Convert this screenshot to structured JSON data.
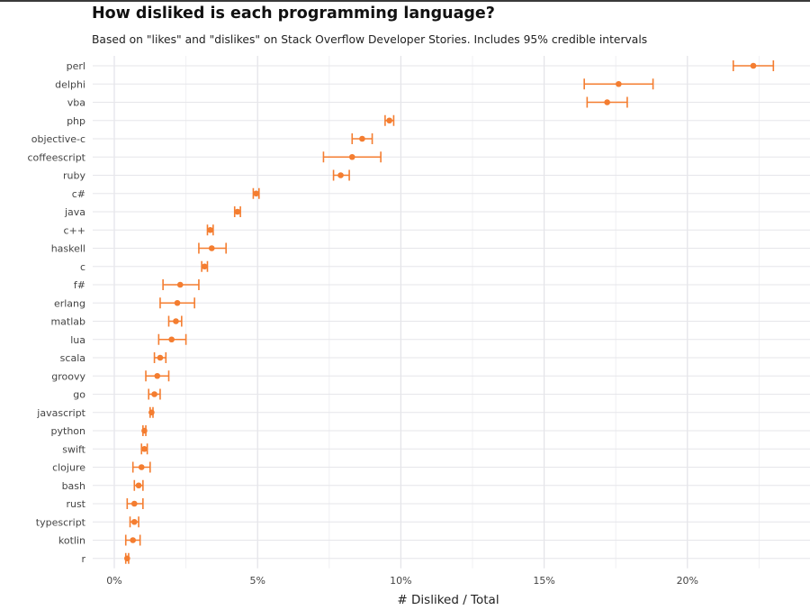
{
  "chart_data": {
    "type": "scatter",
    "title": "How disliked is each programming language?",
    "subtitle": "Based on \"likes\" and \"dislikes\" on Stack Overflow Developer Stories. Includes 95% credible intervals",
    "xlabel": "# Disliked / Total",
    "ylabel": "",
    "xlim": [
      0,
      24
    ],
    "x_ticks": [
      0,
      5,
      10,
      15,
      20
    ],
    "x_tick_labels": [
      "0%",
      "5%",
      "10%",
      "15%",
      "20%"
    ],
    "grid": true,
    "color": "#f47d30",
    "points": [
      {
        "label": "perl",
        "value": 22.3,
        "low": 21.6,
        "high": 23.0
      },
      {
        "label": "delphi",
        "value": 17.6,
        "low": 16.4,
        "high": 18.8
      },
      {
        "label": "vba",
        "value": 17.2,
        "low": 16.5,
        "high": 17.9
      },
      {
        "label": "php",
        "value": 9.6,
        "low": 9.45,
        "high": 9.75
      },
      {
        "label": "objective-c",
        "value": 8.65,
        "low": 8.3,
        "high": 9.0
      },
      {
        "label": "coffeescript",
        "value": 8.3,
        "low": 7.3,
        "high": 9.3
      },
      {
        "label": "ruby",
        "value": 7.9,
        "low": 7.65,
        "high": 8.2
      },
      {
        "label": "c#",
        "value": 4.95,
        "low": 4.85,
        "high": 5.05
      },
      {
        "label": "java",
        "value": 4.3,
        "low": 4.2,
        "high": 4.4
      },
      {
        "label": "c++",
        "value": 3.35,
        "low": 3.25,
        "high": 3.45
      },
      {
        "label": "haskell",
        "value": 3.4,
        "low": 2.95,
        "high": 3.9
      },
      {
        "label": "c",
        "value": 3.15,
        "low": 3.05,
        "high": 3.25
      },
      {
        "label": "f#",
        "value": 2.3,
        "low": 1.7,
        "high": 2.95
      },
      {
        "label": "erlang",
        "value": 2.2,
        "low": 1.6,
        "high": 2.8
      },
      {
        "label": "matlab",
        "value": 2.15,
        "low": 1.9,
        "high": 2.35
      },
      {
        "label": "lua",
        "value": 2.0,
        "low": 1.55,
        "high": 2.5
      },
      {
        "label": "scala",
        "value": 1.6,
        "low": 1.4,
        "high": 1.8
      },
      {
        "label": "groovy",
        "value": 1.5,
        "low": 1.1,
        "high": 1.9
      },
      {
        "label": "go",
        "value": 1.4,
        "low": 1.2,
        "high": 1.6
      },
      {
        "label": "javascript",
        "value": 1.3,
        "low": 1.25,
        "high": 1.35
      },
      {
        "label": "python",
        "value": 1.05,
        "low": 1.0,
        "high": 1.1
      },
      {
        "label": "swift",
        "value": 1.05,
        "low": 0.95,
        "high": 1.15
      },
      {
        "label": "clojure",
        "value": 0.95,
        "low": 0.65,
        "high": 1.25
      },
      {
        "label": "bash",
        "value": 0.85,
        "low": 0.7,
        "high": 1.0
      },
      {
        "label": "rust",
        "value": 0.7,
        "low": 0.45,
        "high": 1.0
      },
      {
        "label": "typescript",
        "value": 0.7,
        "low": 0.55,
        "high": 0.85
      },
      {
        "label": "kotlin",
        "value": 0.65,
        "low": 0.4,
        "high": 0.9
      },
      {
        "label": "r",
        "value": 0.45,
        "low": 0.4,
        "high": 0.5
      }
    ]
  }
}
